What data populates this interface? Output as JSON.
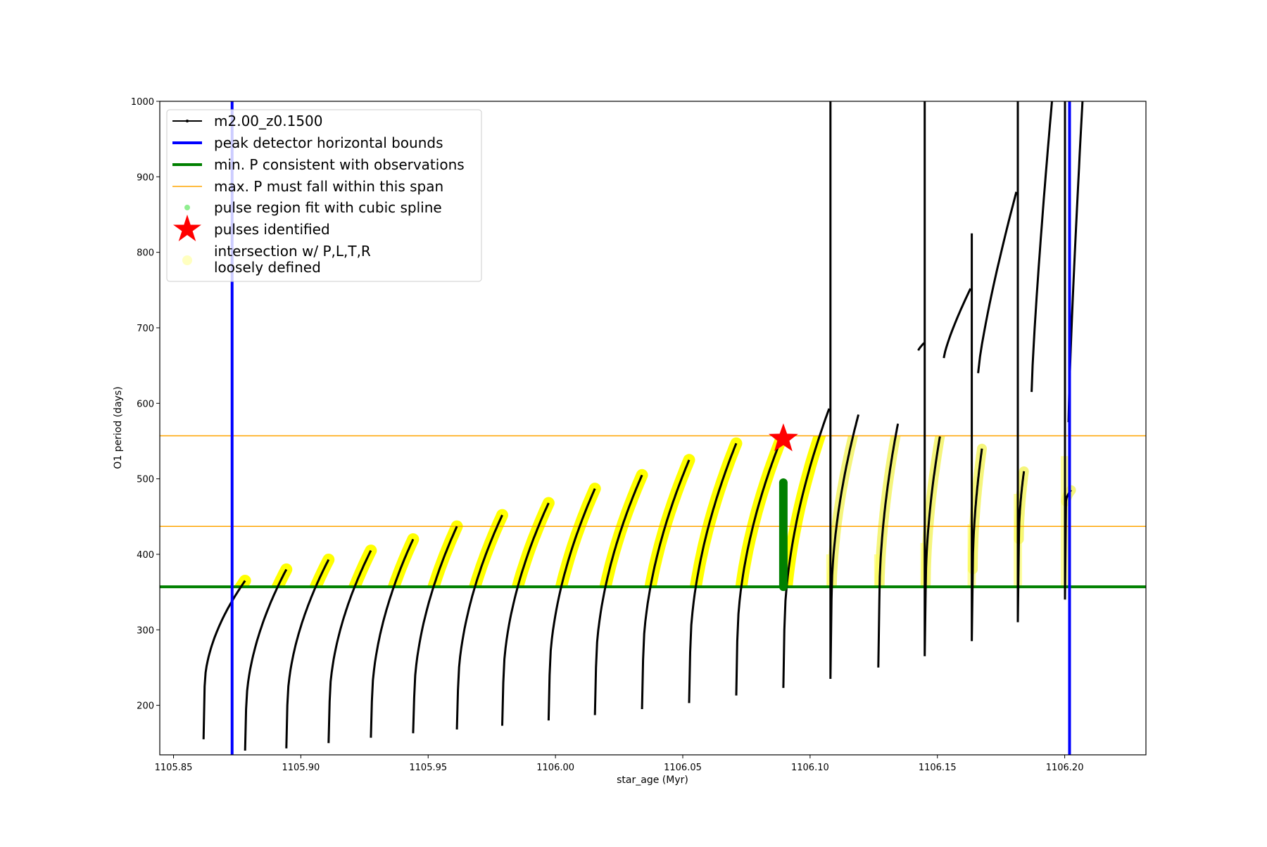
{
  "chart_data": {
    "type": "line",
    "xlabel": "star_age (Myr)",
    "ylabel": "O1 period (days)",
    "xlim": [
      1105.8446,
      1106.2319
    ],
    "ylim": [
      134.4,
      1000
    ],
    "xticks": [
      1105.85,
      1105.9,
      1105.95,
      1106.0,
      1106.05,
      1106.1,
      1106.15,
      1106.2
    ],
    "xtick_labels": [
      "1105.85",
      "1105.90",
      "1105.95",
      "1106.00",
      "1106.05",
      "1106.10",
      "1106.15",
      "1106.20"
    ],
    "yticks": [
      200,
      300,
      400,
      500,
      600,
      700,
      800,
      900,
      1000
    ],
    "ytick_labels": [
      "200",
      "300",
      "400",
      "500",
      "600",
      "700",
      "800",
      "900",
      "1000"
    ],
    "legend_position": "upper-left",
    "legend": [
      {
        "label": "m2.00_z0.1500",
        "kind": "line-marker",
        "color": "#000000"
      },
      {
        "label": "peak detector horizontal bounds",
        "kind": "thick-line",
        "color": "#0000ff"
      },
      {
        "label": "min. P consistent with observations",
        "kind": "thick-line",
        "color": "#008000"
      },
      {
        "label": "max. P must fall within this span",
        "kind": "thin-line",
        "color": "#ffa500"
      },
      {
        "label": "pulse region fit with cubic spline",
        "kind": "dot",
        "color": "#90ee90"
      },
      {
        "label": "pulses identified",
        "kind": "star",
        "color": "#ff0000"
      },
      {
        "label": "intersection w/ P,L,T,R",
        "label2": "loosely defined",
        "kind": "big-dot",
        "color": "#ffffc0"
      }
    ],
    "peak_detector_bounds": [
      1105.873,
      1106.2019
    ],
    "min_P": 357,
    "max_P_span": [
      437,
      557
    ],
    "pulse_identified": {
      "x": 1106.0895,
      "y": 553
    },
    "spline_region": {
      "x": 1106.0895,
      "y_range": [
        357,
        495
      ]
    },
    "series_name": "m2.00_z0.1500",
    "cycles": [
      {
        "t": 1105.8618,
        "min": 155,
        "start": 225,
        "peak": 365,
        "end": 1105.8781
      },
      {
        "t": 1105.8781,
        "min": 140,
        "start": 195,
        "peak": 380,
        "end": 1105.8943
      },
      {
        "t": 1105.8943,
        "min": 143,
        "start": 200,
        "peak": 393,
        "end": 1105.9109
      },
      {
        "t": 1105.9109,
        "min": 150,
        "start": 205,
        "peak": 405,
        "end": 1105.9275
      },
      {
        "t": 1105.9275,
        "min": 157,
        "start": 205,
        "peak": 420,
        "end": 1105.9441
      },
      {
        "t": 1105.9441,
        "min": 163,
        "start": 210,
        "peak": 437,
        "end": 1105.9613
      },
      {
        "t": 1105.9613,
        "min": 168,
        "start": 220,
        "peak": 452,
        "end": 1105.9791
      },
      {
        "t": 1105.9791,
        "min": 173,
        "start": 230,
        "peak": 468,
        "end": 1105.9973
      },
      {
        "t": 1105.9973,
        "min": 180,
        "start": 240,
        "peak": 487,
        "end": 1106.0155
      },
      {
        "t": 1106.0155,
        "min": 187,
        "start": 250,
        "peak": 505,
        "end": 1106.034
      },
      {
        "t": 1106.034,
        "min": 195,
        "start": 260,
        "peak": 525,
        "end": 1106.0525
      },
      {
        "t": 1106.0525,
        "min": 203,
        "start": 270,
        "peak": 547,
        "end": 1106.071
      },
      {
        "t": 1106.071,
        "min": 213,
        "start": 285,
        "peak": 560,
        "end": 1106.0895
      },
      {
        "t": 1106.0895,
        "min": 223,
        "start": 300,
        "peak": 593,
        "end": 1106.1075
      },
      {
        "t": 1106.108,
        "min": 235,
        "spike": 1000,
        "start": 340,
        "peak": 585,
        "end": 1106.119
      },
      {
        "t": 1106.1268,
        "min": 250,
        "start": 340,
        "peak": 573,
        "end": 1106.1345
      },
      {
        "t": 1106.145,
        "min": 265,
        "spike": 1000,
        "start": 355,
        "peak": 556,
        "end": 1106.151
      },
      {
        "t": 1106.1635,
        "min": 285,
        "spike": 825,
        "start": 380,
        "peak": 540,
        "end": 1106.1675
      },
      {
        "t": 1106.1816,
        "min": 310,
        "spike": 1000,
        "start": 420,
        "peak": 510,
        "end": 1106.184
      },
      {
        "t": 1106.2001,
        "min": 340,
        "spike": 1000,
        "start": 470,
        "peak": 485,
        "end": 1106.2025
      }
    ],
    "extra_segments": [
      {
        "t0": 1106.1425,
        "t1": 1106.1448,
        "p0": 670,
        "p1": 680
      },
      {
        "t0": 1106.1525,
        "t1": 1106.163,
        "p0": 660,
        "p1": 752
      },
      {
        "t0": 1106.166,
        "t1": 1106.181,
        "p0": 640,
        "p1": 880
      },
      {
        "t0": 1106.187,
        "t1": 1106.195,
        "p0": 615,
        "p1": 1000
      },
      {
        "t0": 1106.2015,
        "t1": 1106.207,
        "p0": 575,
        "p1": 1000
      }
    ]
  }
}
